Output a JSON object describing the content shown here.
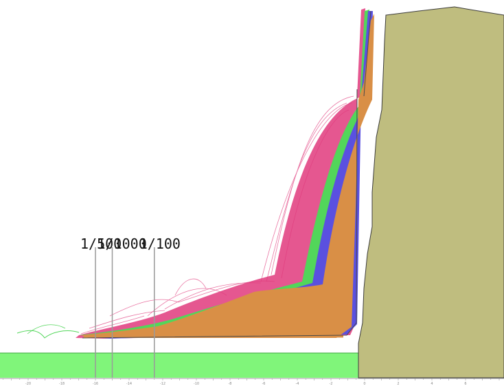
{
  "figure": {
    "colors": {
      "background": "#ffffff",
      "cliff": "#bfbd7f",
      "cliff_outline": "#3c3c3c",
      "water": "#80f57a",
      "water_edge": "#3aa83a",
      "fill_orange": "#d98f46",
      "traj_blue": "#5a50e0",
      "traj_green": "#52d65a",
      "traj_pink": "#e03a7c",
      "line_grey": "#9a9a9a",
      "axis": "#9c9c9c"
    },
    "return_period_markers": [
      {
        "label": "1/500",
        "x": -16
      },
      {
        "label": "1/1000",
        "x": -15
      },
      {
        "label": "1/100",
        "x": -12.5
      }
    ],
    "x_axis": {
      "range": [
        -22,
        8
      ],
      "tick_labels": [
        "-20",
        "-18",
        "-16",
        "-14",
        "-12",
        "-10",
        "-8",
        "-6",
        "-4",
        "-2",
        "0",
        "2",
        "4",
        "6"
      ]
    }
  }
}
